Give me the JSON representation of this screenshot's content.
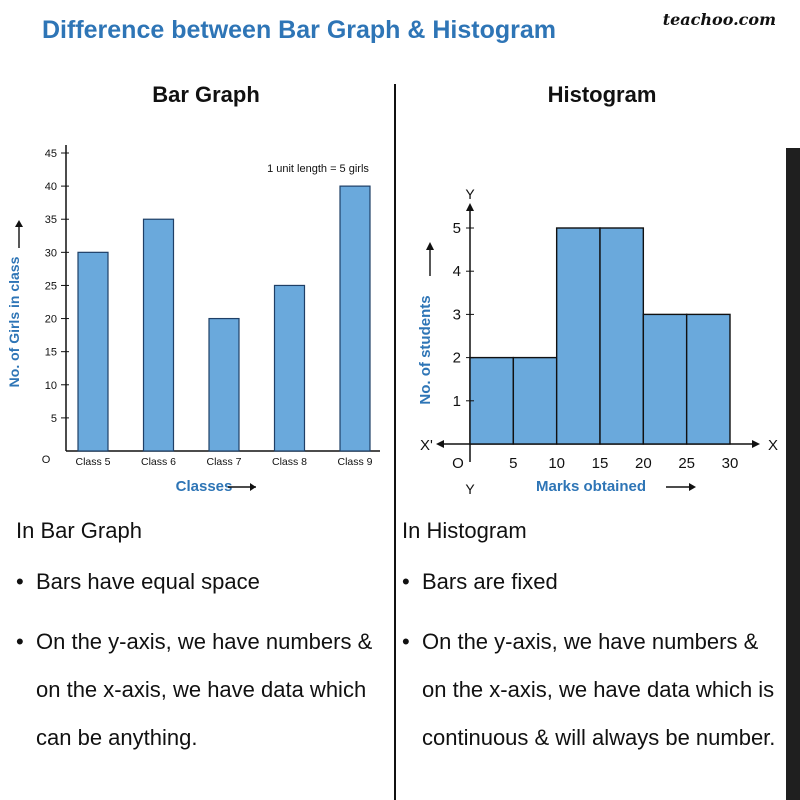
{
  "page": {
    "title": "Difference between Bar Graph & Histogram",
    "brand": "teachoo.com"
  },
  "bar_panel": {
    "heading": "Bar Graph",
    "notes_heading": "In Bar Graph",
    "bullets": [
      "Bars have equal space",
      "On the y-axis, we have numbers & on the x-axis, we have data which can be anything."
    ]
  },
  "hist_panel": {
    "heading": "Histogram",
    "notes_heading": "In Histogram",
    "bullets": [
      "Bars are fixed",
      "On the y-axis, we have numbers & on the x-axis, we have data which is continuous & will always be number."
    ]
  },
  "colors": {
    "bar_fill": "#6AA9DC",
    "bar_stroke": "#1F3F66",
    "axis_label": "#2E75B6",
    "title": "#2E75B6"
  },
  "chart_data": [
    {
      "type": "bar",
      "title": "Bar Graph",
      "categories": [
        "Class 5",
        "Class 6",
        "Class 7",
        "Class 8",
        "Class 9"
      ],
      "values": [
        30,
        35,
        20,
        25,
        40
      ],
      "xlabel": "Classes",
      "ylabel": "No. of Girls in class",
      "origin_label": "O",
      "yticks": [
        5,
        10,
        15,
        20,
        25,
        30,
        35,
        40,
        45
      ],
      "ylim": [
        0,
        45
      ],
      "annotation": "1 unit length = 5 girls",
      "grid": false
    },
    {
      "type": "bar",
      "title": "Histogram",
      "bins": [
        [
          0,
          5
        ],
        [
          5,
          10
        ],
        [
          10,
          15
        ],
        [
          15,
          20
        ],
        [
          20,
          25
        ],
        [
          25,
          30
        ]
      ],
      "values": [
        2,
        2,
        5,
        5,
        3,
        3
      ],
      "xticks": [
        5,
        10,
        15,
        20,
        25,
        30
      ],
      "yticks": [
        1,
        2,
        3,
        4,
        5
      ],
      "xlabel": "Marks obtained",
      "ylabel": "No. of students",
      "axis_names": {
        "x": "X",
        "x_neg": "X'",
        "y": "Y",
        "y_neg": "Y",
        "origin": "O"
      },
      "xlim": [
        0,
        30
      ],
      "ylim": [
        0,
        5
      ],
      "grid": false
    }
  ]
}
